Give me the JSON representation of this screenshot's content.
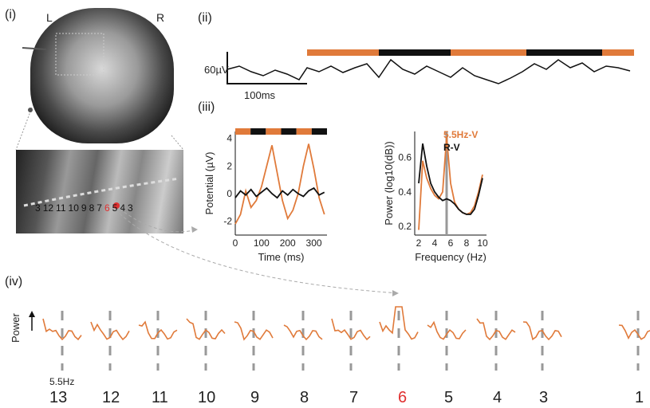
{
  "panels": {
    "i": {
      "label": "(i)",
      "left_label": "L",
      "right_label": "R",
      "electrode_labels": [
        "3",
        "12",
        "11",
        "10",
        "9",
        "8",
        "7",
        "6",
        "5",
        "4",
        "3"
      ]
    },
    "ii": {
      "label": "(ii)",
      "scale_v": "60µV",
      "scale_t": "100ms"
    },
    "iii": {
      "label": "(iii)"
    },
    "iv": {
      "label": "(iv)",
      "y_label": "Power",
      "freq_label": "5.5Hz",
      "channels": [
        "13",
        "12",
        "11",
        "10",
        "9",
        "8",
        "7",
        "6",
        "5",
        "4",
        "3",
        "1"
      ],
      "highlight_channel": "6"
    }
  },
  "colors": {
    "orange": "#e07a3a",
    "black": "#111111",
    "highlight": "#e03030"
  },
  "chart_data": [
    {
      "type": "line",
      "title": "",
      "xlabel": "Time (ms)",
      "ylabel": "Potential (µV)",
      "xlim": [
        0,
        350
      ],
      "ylim": [
        -3,
        4.5
      ],
      "x_ticks": [
        "0",
        "100",
        "200",
        "300"
      ],
      "y_ticks": [
        "-2",
        "0",
        "2",
        "4"
      ],
      "x": [
        0,
        20,
        40,
        60,
        80,
        100,
        120,
        140,
        160,
        180,
        200,
        220,
        240,
        260,
        280,
        300,
        320,
        340
      ],
      "series": [
        {
          "color": "#e07a3a",
          "values": [
            -2.2,
            -1.5,
            0.2,
            -1.0,
            -0.5,
            0.5,
            2.0,
            3.5,
            1.5,
            -0.5,
            -1.8,
            -1.2,
            0.0,
            2.0,
            3.6,
            1.8,
            -0.3,
            -1.5
          ]
        },
        {
          "color": "#111111",
          "values": [
            -0.3,
            0.2,
            -0.1,
            0.3,
            -0.2,
            0.1,
            0.4,
            0.0,
            -0.3,
            0.2,
            -0.1,
            0.3,
            0.0,
            -0.2,
            0.2,
            0.4,
            -0.1,
            0.1
          ]
        }
      ]
    },
    {
      "type": "line",
      "title": "",
      "xlabel": "Frequency (Hz)",
      "ylabel": "Power (log10(dB))",
      "xlim": [
        1.5,
        10.5
      ],
      "ylim": [
        0.15,
        0.75
      ],
      "x_ticks": [
        "2",
        "4",
        "6",
        "8",
        "10"
      ],
      "y_ticks": [
        "0.2",
        "0.4",
        "0.6"
      ],
      "x": [
        2,
        2.5,
        3,
        3.5,
        4,
        4.5,
        5,
        5.5,
        6,
        6.5,
        7,
        7.5,
        8,
        8.5,
        9,
        9.5,
        10
      ],
      "series": [
        {
          "name": "5.5Hz-V",
          "color": "#e07a3a",
          "values": [
            0.18,
            0.58,
            0.48,
            0.42,
            0.38,
            0.36,
            0.4,
            0.72,
            0.45,
            0.34,
            0.3,
            0.28,
            0.27,
            0.28,
            0.32,
            0.4,
            0.5
          ]
        },
        {
          "name": "R-V",
          "color": "#111111",
          "values": [
            0.45,
            0.68,
            0.55,
            0.45,
            0.4,
            0.37,
            0.35,
            0.36,
            0.35,
            0.33,
            0.3,
            0.28,
            0.27,
            0.27,
            0.3,
            0.38,
            0.48
          ]
        }
      ]
    }
  ]
}
